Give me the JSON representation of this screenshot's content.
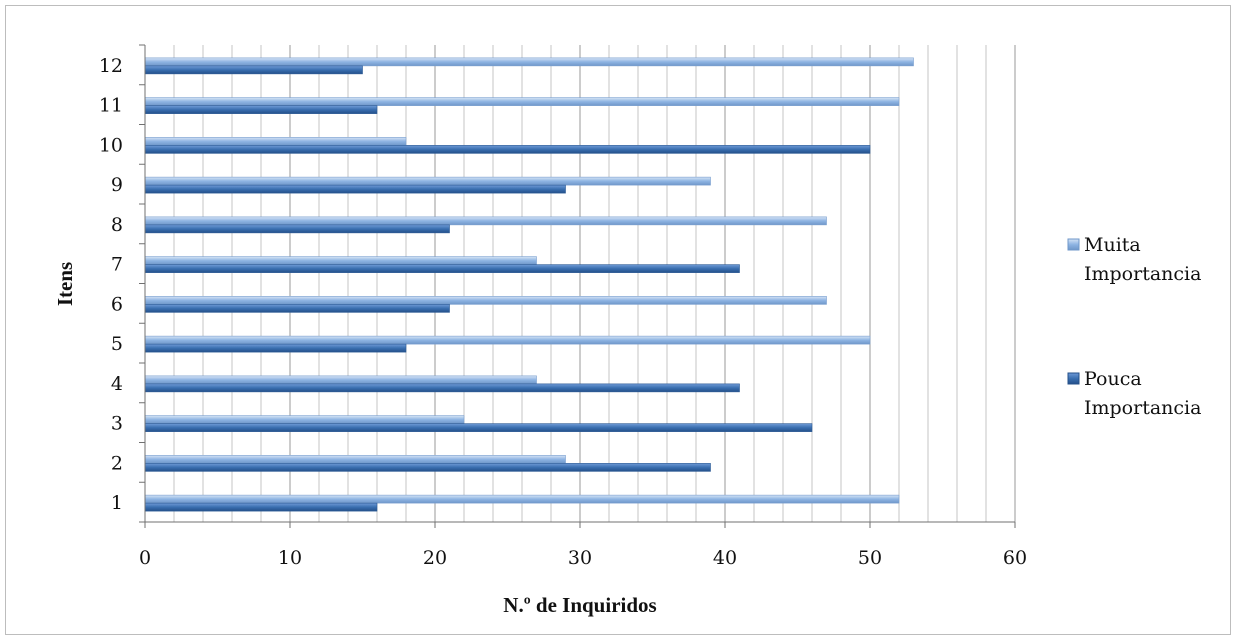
{
  "chart_data": {
    "type": "bar",
    "orientation": "horizontal",
    "categories": [
      "1",
      "2",
      "3",
      "4",
      "5",
      "6",
      "7",
      "8",
      "9",
      "10",
      "11",
      "12"
    ],
    "series": [
      {
        "name": "Muita Importancia",
        "color": "#8eb4e3",
        "values": [
          52,
          29,
          22,
          27,
          50,
          47,
          27,
          47,
          39,
          18,
          52,
          53
        ]
      },
      {
        "name": "Pouca Importancia",
        "color": "#3a6fb0",
        "values": [
          16,
          39,
          46,
          41,
          18,
          21,
          41,
          21,
          29,
          50,
          16,
          15
        ]
      }
    ],
    "xlabel": "N.º de Inquiridos",
    "ylabel": "Itens",
    "xlim": [
      0,
      60
    ],
    "xticks": [
      0,
      10,
      20,
      30,
      40,
      50,
      60
    ],
    "xticks_labels": [
      "0",
      "10",
      "20",
      "30",
      "40",
      "50",
      "60"
    ],
    "grid": "vertical",
    "legend_position": "right"
  },
  "legend": {
    "items": [
      {
        "line1": "Muita",
        "line2": "Importancia"
      },
      {
        "line1": "Pouca",
        "line2": "Importancia"
      }
    ]
  }
}
